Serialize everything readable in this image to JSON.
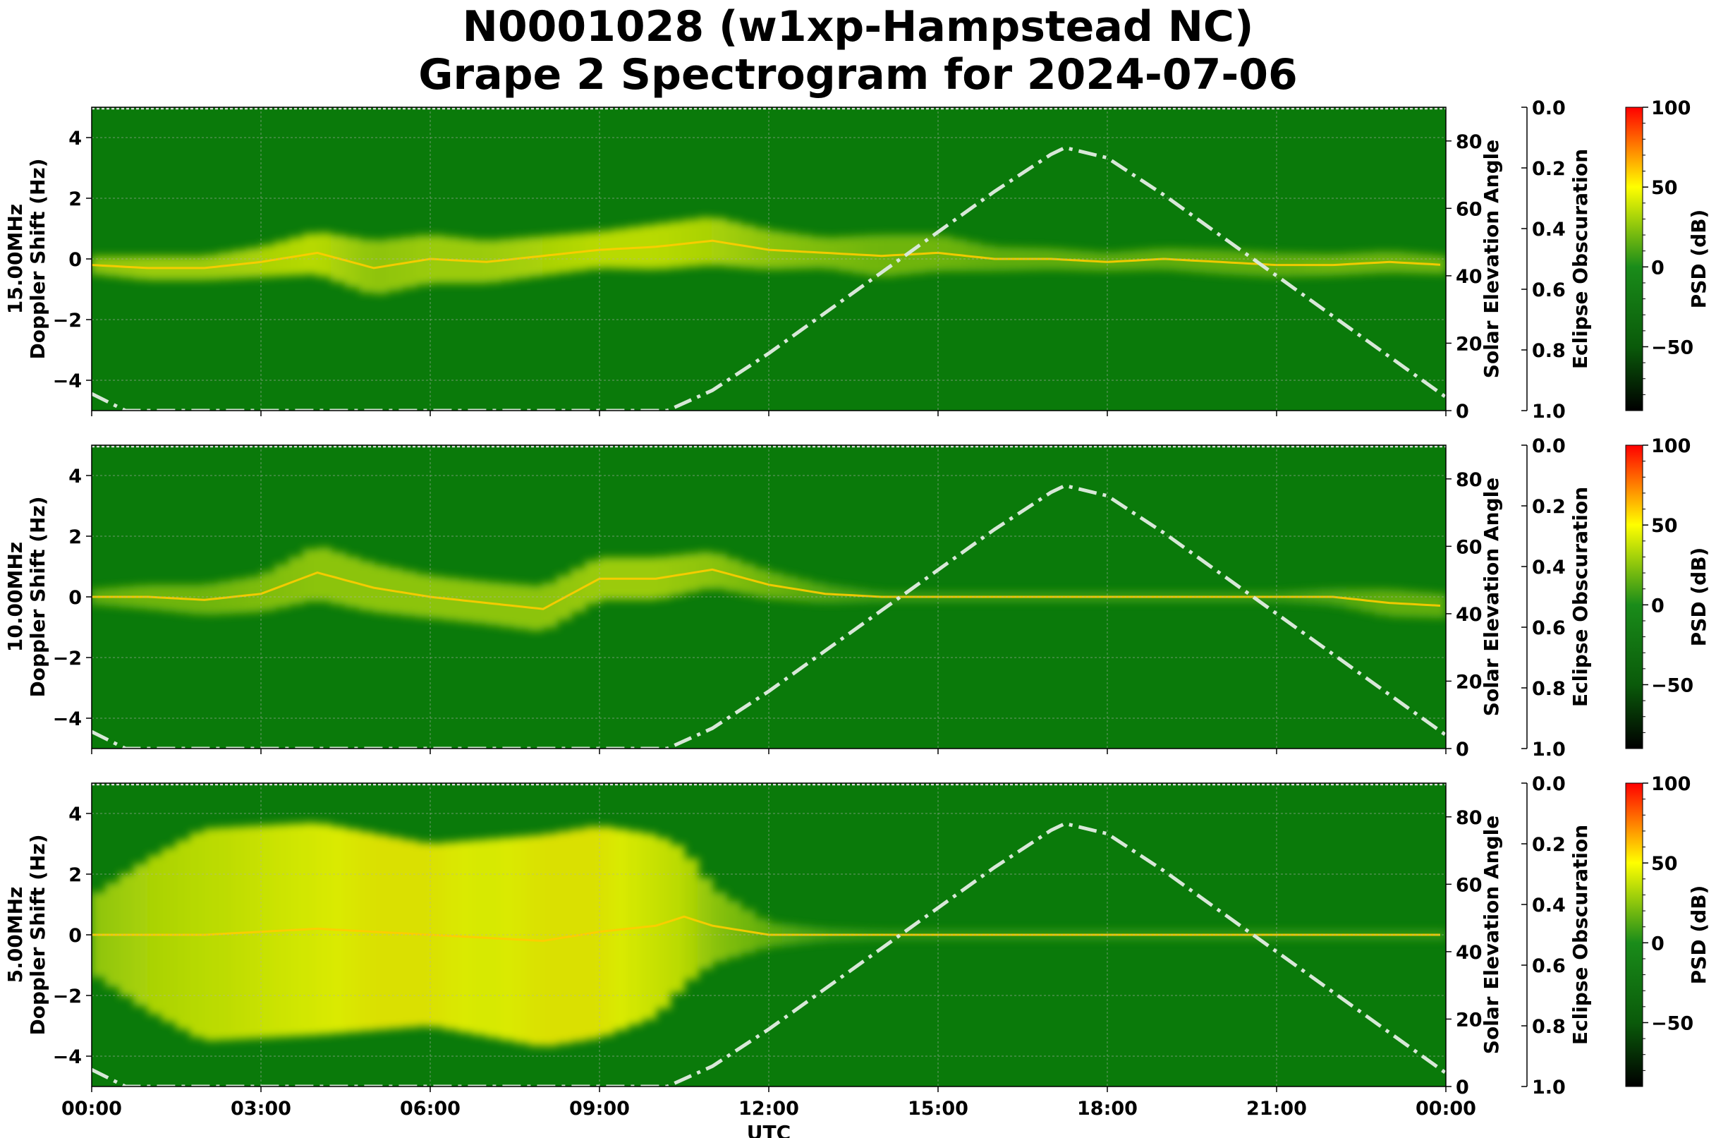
{
  "title_lines": [
    "N0001028 (w1xp-Hampstead NC)",
    "Grape 2 Spectrogram for 2024-07-06"
  ],
  "chart_data": [
    {
      "type": "heatmap",
      "panel_label": "15.00MHz",
      "ylabel": "Doppler Shift (Hz)",
      "xlabel": "",
      "ylim": [
        -5,
        5
      ],
      "y_ticks": [
        -4,
        -2,
        0,
        2,
        4
      ],
      "x_ticks": [
        "00:00",
        "03:00",
        "06:00",
        "09:00",
        "12:00",
        "15:00",
        "18:00",
        "21:00",
        "00:00"
      ],
      "xlim_hours": [
        0,
        24
      ],
      "grid": true,
      "background_color": "#0a7a0a",
      "doppler_trace": {
        "x_hours": [
          0,
          1,
          2,
          3,
          4,
          5,
          6,
          7,
          8,
          9,
          10,
          11,
          12,
          13,
          14,
          15,
          16,
          17,
          18,
          19,
          20,
          21,
          22,
          23,
          24
        ],
        "y_hz": [
          -0.2,
          -0.3,
          -0.3,
          -0.1,
          0.2,
          -0.3,
          0.0,
          -0.1,
          0.1,
          0.3,
          0.4,
          0.6,
          0.3,
          0.2,
          0.1,
          0.2,
          0.0,
          0.0,
          -0.1,
          0.0,
          -0.1,
          -0.2,
          -0.2,
          -0.1,
          -0.2
        ],
        "spread_hz": [
          0.6,
          0.8,
          0.8,
          1.0,
          1.4,
          1.8,
          1.6,
          1.4,
          1.3,
          1.2,
          1.5,
          1.6,
          1.3,
          1.0,
          1.4,
          1.2,
          0.8,
          0.7,
          0.6,
          0.7,
          0.8,
          0.8,
          0.7,
          0.7,
          0.6
        ],
        "psd_db": [
          40,
          45,
          45,
          50,
          55,
          40,
          45,
          45,
          50,
          55,
          55,
          50,
          40,
          35,
          30,
          30,
          25,
          25,
          25,
          25,
          25,
          25,
          30,
          30,
          30
        ]
      },
      "solar_elevation": {
        "ylabel": "Solar Elevation Angle",
        "ylim": [
          0,
          90
        ],
        "ticks": [
          0,
          20,
          40,
          60,
          80
        ],
        "x_hours": [
          0,
          0.6,
          10.2,
          11,
          12,
          13,
          14,
          15,
          16,
          17,
          17.25,
          18,
          19,
          20,
          21,
          22,
          23,
          24
        ],
        "values": [
          5,
          0,
          0,
          6,
          17,
          29,
          41,
          53,
          65,
          76,
          78,
          75,
          64,
          52,
          40,
          28,
          16,
          4
        ],
        "color": "#d8e8d8"
      },
      "eclipse_obscuration": {
        "ylabel": "Eclipse Obscuration",
        "ylim": [
          1.0,
          0.0
        ],
        "ticks": [
          "0.0",
          "0.2",
          "0.4",
          "0.6",
          "0.8",
          "1.0"
        ],
        "values": [
          0.0
        ]
      },
      "colorbar": {
        "label": "PSD (dB)",
        "range": [
          -90,
          100
        ],
        "ticks": [
          100,
          50,
          0,
          -50
        ],
        "tick_labels": [
          "100",
          "50",
          "0",
          "−50"
        ],
        "colors": [
          "#ff0000",
          "#ffff00",
          "#1a8c1a",
          "#0a5a0a",
          "#000000"
        ]
      }
    },
    {
      "type": "heatmap",
      "panel_label": "10.00MHz",
      "ylabel": "Doppler Shift (Hz)",
      "xlabel": "",
      "ylim": [
        -5,
        5
      ],
      "y_ticks": [
        -4,
        -2,
        0,
        2,
        4
      ],
      "x_ticks": [
        "00:00",
        "03:00",
        "06:00",
        "09:00",
        "12:00",
        "15:00",
        "18:00",
        "21:00",
        "00:00"
      ],
      "xlim_hours": [
        0,
        24
      ],
      "grid": true,
      "background_color": "#0a7a0a",
      "doppler_trace": {
        "x_hours": [
          0,
          1,
          2,
          3,
          4,
          5,
          6,
          7,
          8,
          9,
          10,
          11,
          12,
          13,
          14,
          15,
          16,
          17,
          18,
          19,
          20,
          21,
          22,
          23,
          24
        ],
        "y_hz": [
          0.0,
          0.0,
          -0.1,
          0.1,
          0.8,
          0.3,
          0.0,
          -0.2,
          -0.4,
          0.6,
          0.6,
          0.9,
          0.4,
          0.1,
          0.0,
          0.0,
          0.0,
          0.0,
          0.0,
          0.0,
          0.0,
          0.0,
          0.0,
          -0.2,
          -0.3
        ],
        "spread_hz": [
          0.5,
          0.8,
          1.0,
          1.2,
          1.8,
          1.6,
          1.4,
          1.4,
          1.5,
          1.4,
          1.4,
          1.2,
          0.9,
          0.6,
          0.3,
          0.3,
          0.3,
          0.3,
          0.3,
          0.3,
          0.3,
          0.3,
          0.5,
          0.9,
          0.8
        ],
        "psd_db": [
          25,
          30,
          30,
          35,
          40,
          40,
          40,
          40,
          40,
          45,
          45,
          40,
          30,
          20,
          15,
          15,
          15,
          15,
          15,
          15,
          15,
          15,
          20,
          25,
          25
        ]
      },
      "solar_elevation": {
        "ylabel": "Solar Elevation Angle",
        "ylim": [
          0,
          90
        ],
        "ticks": [
          0,
          20,
          40,
          60,
          80
        ],
        "x_hours": [
          0,
          0.6,
          10.2,
          11,
          12,
          13,
          14,
          15,
          16,
          17,
          17.25,
          18,
          19,
          20,
          21,
          22,
          23,
          24
        ],
        "values": [
          5,
          0,
          0,
          6,
          17,
          29,
          41,
          53,
          65,
          76,
          78,
          75,
          64,
          52,
          40,
          28,
          16,
          4
        ],
        "color": "#d8e8d8"
      },
      "eclipse_obscuration": {
        "ylabel": "Eclipse Obscuration",
        "ylim": [
          1.0,
          0.0
        ],
        "ticks": [
          "0.0",
          "0.2",
          "0.4",
          "0.6",
          "0.8",
          "1.0"
        ],
        "values": [
          0.0
        ]
      },
      "colorbar": {
        "label": "PSD (dB)",
        "range": [
          -90,
          100
        ],
        "ticks": [
          100,
          50,
          0,
          -50
        ],
        "tick_labels": [
          "100",
          "50",
          "0",
          "−50"
        ],
        "colors": [
          "#ff0000",
          "#ffff00",
          "#1a8c1a",
          "#0a5a0a",
          "#000000"
        ]
      }
    },
    {
      "type": "heatmap",
      "panel_label": "5.00MHz",
      "ylabel": "Doppler Shift (Hz)",
      "xlabel": "UTC",
      "ylim": [
        -5,
        5
      ],
      "y_ticks": [
        -4,
        -2,
        0,
        2,
        4
      ],
      "x_ticks": [
        "00:00",
        "03:00",
        "06:00",
        "09:00",
        "12:00",
        "15:00",
        "18:00",
        "21:00",
        "00:00"
      ],
      "xlim_hours": [
        0,
        24
      ],
      "grid": true,
      "background_color": "#0a7a0a",
      "doppler_trace": {
        "x_hours": [
          0,
          1,
          2,
          3,
          4,
          5,
          6,
          7,
          8,
          9,
          10,
          10.5,
          11,
          12,
          13,
          14,
          15,
          16,
          17,
          18,
          19,
          20,
          21,
          22,
          23,
          24
        ],
        "y_hz": [
          0.0,
          0.0,
          0.0,
          0.1,
          0.2,
          0.1,
          0.0,
          -0.1,
          -0.2,
          0.1,
          0.3,
          0.6,
          0.3,
          0.0,
          0.0,
          0.0,
          0.0,
          0.0,
          0.0,
          0.0,
          0.0,
          0.0,
          0.0,
          0.0,
          0.0,
          0.0
        ],
        "spread_hz": [
          2.5,
          5.0,
          7.0,
          7.0,
          7.0,
          6.5,
          6.0,
          6.5,
          7.0,
          7.0,
          6.0,
          4.5,
          2.5,
          0.8,
          0.4,
          0.3,
          0.3,
          0.3,
          0.3,
          0.3,
          0.3,
          0.3,
          0.3,
          0.3,
          0.3,
          0.3
        ],
        "psd_db": [
          40,
          50,
          55,
          60,
          65,
          70,
          70,
          65,
          70,
          70,
          60,
          55,
          40,
          25,
          15,
          10,
          10,
          10,
          10,
          10,
          10,
          10,
          10,
          10,
          10,
          10
        ]
      },
      "solar_elevation": {
        "ylabel": "Solar Elevation Angle",
        "ylim": [
          0,
          90
        ],
        "ticks": [
          0,
          20,
          40,
          60,
          80
        ],
        "x_hours": [
          0,
          0.6,
          10.2,
          11,
          12,
          13,
          14,
          15,
          16,
          17,
          17.25,
          18,
          19,
          20,
          21,
          22,
          23,
          24
        ],
        "values": [
          5,
          0,
          0,
          6,
          17,
          29,
          41,
          53,
          65,
          76,
          78,
          75,
          64,
          52,
          40,
          28,
          16,
          4
        ],
        "color": "#d8e8d8"
      },
      "eclipse_obscuration": {
        "ylabel": "Eclipse Obscuration",
        "ylim": [
          1.0,
          0.0
        ],
        "ticks": [
          "0.0",
          "0.2",
          "0.4",
          "0.6",
          "0.8",
          "1.0"
        ],
        "values": [
          0.0
        ]
      },
      "colorbar": {
        "label": "PSD (dB)",
        "range": [
          -90,
          100
        ],
        "ticks": [
          100,
          50,
          0,
          -50
        ],
        "tick_labels": [
          "100",
          "50",
          "0",
          "−50"
        ],
        "colors": [
          "#ff0000",
          "#ffff00",
          "#1a8c1a",
          "#0a5a0a",
          "#000000"
        ]
      }
    }
  ]
}
